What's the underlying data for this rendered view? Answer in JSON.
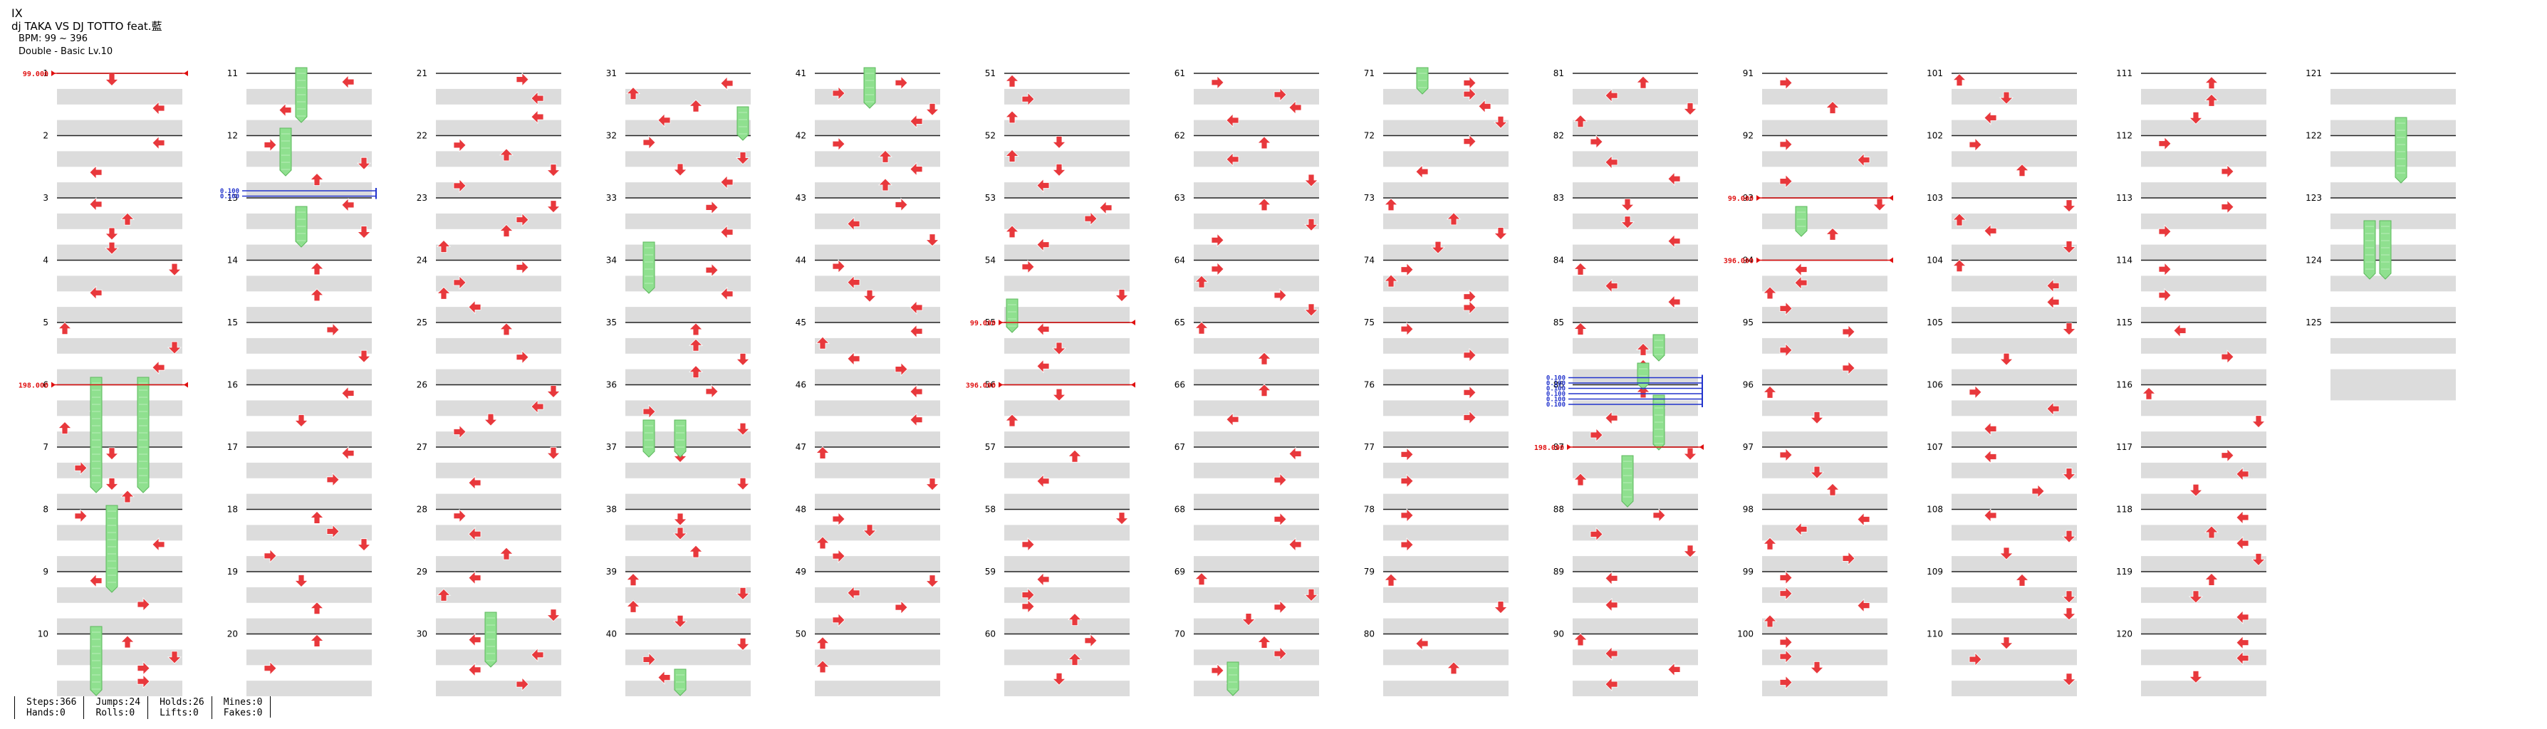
{
  "song": {
    "title": "IX",
    "artist": "dj TAKA VS DJ TOTTO feat.藍",
    "bpm": "BPM: 99 ~ 396",
    "chart": "Double - Basic  Lv.10"
  },
  "stats": {
    "steps": "Steps:366",
    "hands": "Hands:0",
    "jumps": "Jumps:24",
    "rolls": "Rolls:0",
    "holds": "Holds:26",
    "lifts": "Lifts:0",
    "mines": "Mines:0",
    "fakes": "Fakes:0"
  },
  "measure_labels": [
    "1",
    "11",
    "21",
    "31",
    "41",
    "51",
    "61",
    "71",
    "81",
    "91",
    "101",
    "111",
    "121"
  ],
  "colors": {
    "arrow_red": "#e8383c",
    "arrow_blue": "#3355dd",
    "hold_green": "#8fe08f",
    "hold_border": "#5cb85c",
    "band_gray": "#dcdcdc",
    "bpm_red": "#e01010",
    "scroll_blue": "#2233cc"
  },
  "bpm_changes": [
    {
      "measure": 1,
      "label": "99.000"
    },
    {
      "measure": 6,
      "label": "198.000"
    },
    {
      "measure": 55,
      "label": "99.000"
    },
    {
      "measure": 56,
      "label": "396.000"
    },
    {
      "measure": 87,
      "label": "198.000"
    },
    {
      "measure": 93,
      "label": "99.000"
    },
    {
      "measure": 94,
      "label": "396.000"
    }
  ],
  "scroll_changes": [
    {
      "measure": 13,
      "labels": [
        "0.100",
        "0.100"
      ]
    },
    {
      "measure": 86,
      "labels": [
        "0.100",
        "0.100",
        "0.100",
        "0.100",
        "0.100",
        "0.100"
      ]
    }
  ]
}
